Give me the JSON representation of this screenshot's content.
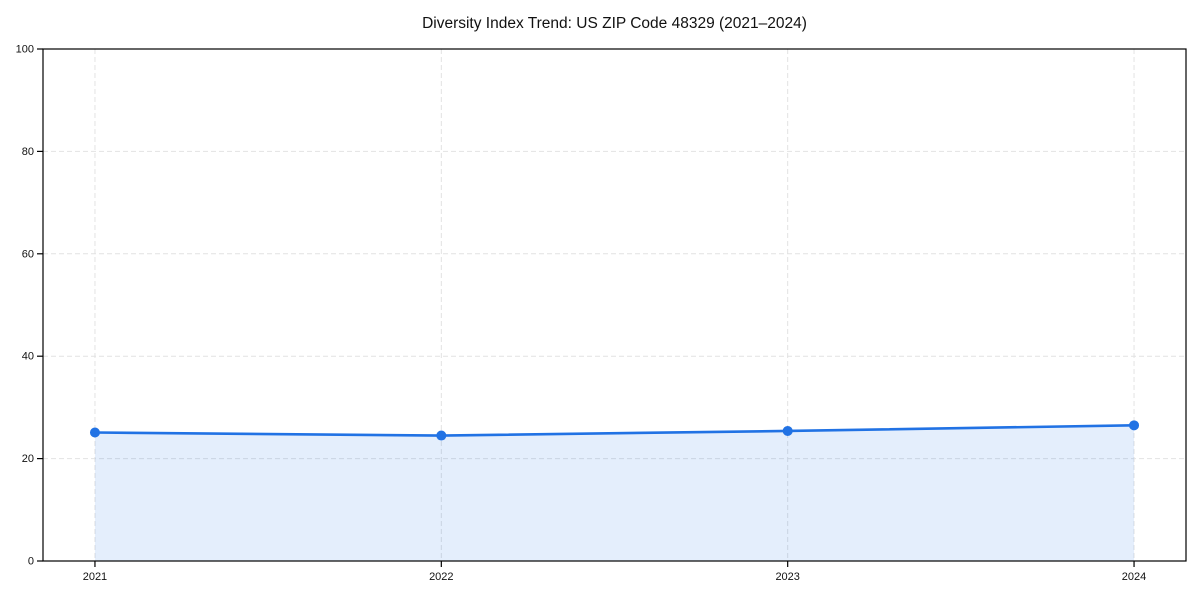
{
  "title": "Diversity Index Trend: US ZIP Code 48329 (2021–2024)",
  "chart_data": {
    "type": "line",
    "title": "Diversity Index Trend: US ZIP Code 48329 (2021–2024)",
    "xlabel": "",
    "ylabel": "",
    "x": [
      2021,
      2022,
      2023,
      2024
    ],
    "categories": [
      "2021",
      "2022",
      "2023",
      "2024"
    ],
    "series": [
      {
        "name": "Diversity Index",
        "values": [
          25.1,
          24.5,
          25.4,
          26.5
        ]
      }
    ],
    "xlim": [
      2020.85,
      2024.15
    ],
    "ylim": [
      0,
      100
    ],
    "xticks": [
      2021,
      2022,
      2023,
      2024
    ],
    "yticks": [
      0,
      20,
      40,
      60,
      80,
      100
    ],
    "grid": true,
    "grid_style": "dashed",
    "legend": false,
    "marker": "circle",
    "area_fill": true,
    "colors": {
      "line": "#2172e4",
      "marker": "#2172e4",
      "fill": "#2172e4",
      "fill_opacity": 0.12,
      "grid": "#e2e2e2",
      "axis": "#000000",
      "text": "#111111",
      "background": "#ffffff"
    }
  }
}
